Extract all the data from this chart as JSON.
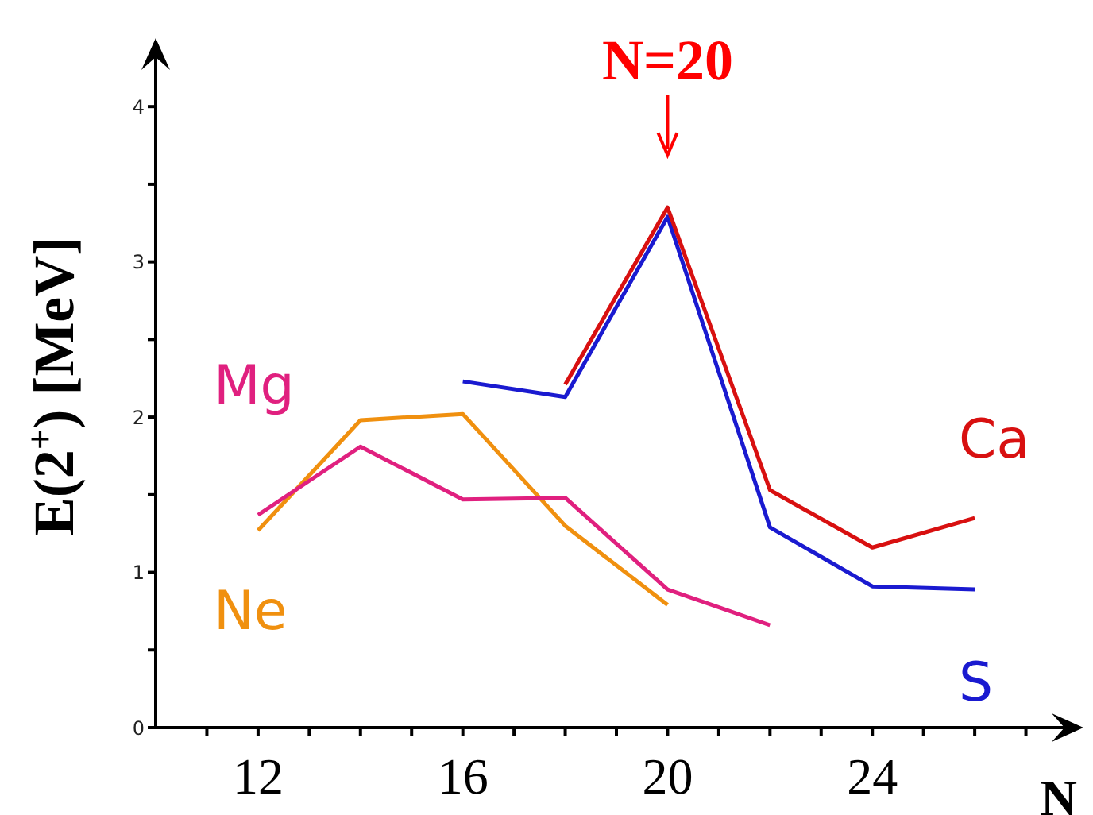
{
  "chart_data": {
    "type": "line",
    "x": [
      12,
      14,
      16,
      18,
      20,
      22,
      24,
      26
    ],
    "series": [
      {
        "name": "Ne",
        "color": "#f0900f",
        "values": [
          1.27,
          1.98,
          2.02,
          1.3,
          0.79,
          null,
          null,
          null
        ]
      },
      {
        "name": "Mg",
        "color": "#e0207f",
        "values": [
          1.37,
          1.81,
          1.47,
          1.48,
          0.89,
          0.66,
          null,
          null
        ]
      },
      {
        "name": "S",
        "color": "#1a1ad0",
        "values": [
          null,
          null,
          2.23,
          2.13,
          3.29,
          1.29,
          0.91,
          0.89
        ]
      },
      {
        "name": "Ca",
        "color": "#d81010",
        "values": [
          null,
          null,
          null,
          2.21,
          3.35,
          1.53,
          1.16,
          1.35
        ]
      }
    ],
    "xlabel": "N",
    "ylabel": "E(2$^{+}$) [MeV]",
    "annotations": [
      {
        "text": "N=20",
        "x": 20,
        "y": 3.35
      }
    ],
    "xlim": [
      10,
      28
    ],
    "ylim": [
      0,
      4.4
    ],
    "xticks": [
      {
        "value": 11,
        "label": null
      },
      12,
      {
        "value": 13,
        "label": null
      },
      {
        "value": 14,
        "label": null
      },
      {
        "value": 15,
        "label": null
      },
      16,
      {
        "value": 17,
        "label": null
      },
      {
        "value": 18,
        "label": null
      },
      {
        "value": 19,
        "label": null
      },
      20,
      {
        "value": 21,
        "label": null
      },
      {
        "value": 22,
        "label": null
      },
      {
        "value": 23,
        "label": null
      },
      24,
      {
        "value": 25,
        "label": null
      },
      {
        "value": 26,
        "label": null
      },
      {
        "value": 27,
        "label": null
      }
    ],
    "yticks": [
      0,
      {
        "value": 0.5,
        "label": null
      },
      1,
      {
        "value": 1.5,
        "label": null
      },
      2,
      {
        "value": 2.5,
        "label": null
      },
      3,
      {
        "value": 3.5,
        "label": null
      },
      4
    ],
    "grid": false,
    "legend": false,
    "marker": "none",
    "line_style": "solid"
  }
}
